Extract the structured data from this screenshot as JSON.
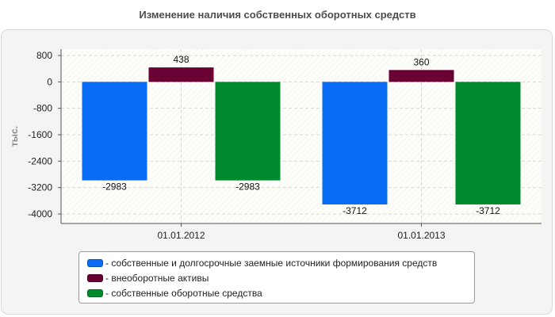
{
  "chart_data": {
    "type": "bar",
    "title": "Изменение наличия собственных оборотных средств",
    "ylabel": "тыс.",
    "xlabel": "",
    "categories": [
      "01.01.2012",
      "01.01.2013"
    ],
    "ylim": [
      -4000,
      800
    ],
    "yticks": [
      800,
      0,
      -800,
      -1600,
      -2400,
      -3200,
      -4000
    ],
    "grid": true,
    "legend_position": "bottom",
    "series": [
      {
        "name": "- собственные и долгосрочные заемные источники формирования средств",
        "values": [
          -2983,
          -3712
        ],
        "labels": [
          "-2983",
          "-3712"
        ],
        "color": "#0a6cf5"
      },
      {
        "name": "- внеоборотные активы",
        "values": [
          438,
          360
        ],
        "labels": [
          "438",
          "360"
        ],
        "color": "#6a0134"
      },
      {
        "name": "- собственные оборотные средства",
        "values": [
          -2983,
          -3712
        ],
        "labels": [
          "-2983",
          "-3712"
        ],
        "color": "#008a2e"
      }
    ]
  }
}
